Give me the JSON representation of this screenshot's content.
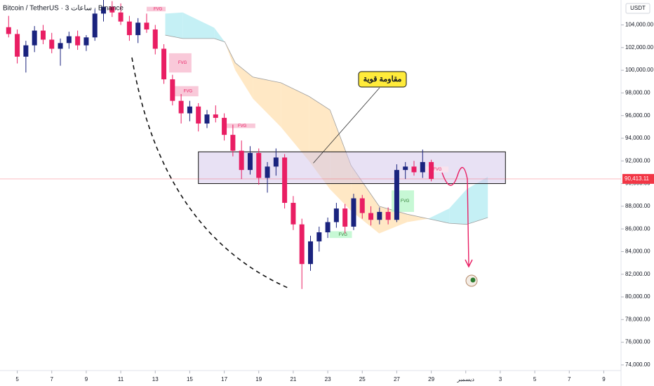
{
  "chart_data": {
    "type": "candlestick",
    "title": "Bitcoin / TetherUS · 3 ساعات · Binance",
    "currency": "USDT",
    "up_color": "#1a237e",
    "down_color": "#e91e63",
    "xlim": [
      4,
      40
    ],
    "ylim": [
      106200,
      73500
    ],
    "xticks": [
      5,
      7,
      9,
      11,
      13,
      15,
      17,
      19,
      21,
      23,
      25,
      27,
      29,
      {
        "value": 31,
        "label": "ديسمبر"
      },
      {
        "value": 33,
        "label": "3"
      },
      {
        "value": 35,
        "label": "5"
      },
      {
        "value": 37,
        "label": "7"
      },
      {
        "value": 39,
        "label": "9"
      }
    ],
    "yticks": [
      {
        "value": 74000,
        "label": "74,000.00"
      },
      {
        "value": 76000,
        "label": "76,000.00"
      },
      {
        "value": 78000,
        "label": "78,000.00"
      },
      {
        "value": 80000,
        "label": "80,000.00"
      },
      {
        "value": 82000,
        "label": "82,000.00"
      },
      {
        "value": 84000,
        "label": "84,000.00"
      },
      {
        "value": 86000,
        "label": "86,000.00"
      },
      {
        "value": 88000,
        "label": "88,000.00"
      },
      {
        "value": 90000,
        "label": "90,000.00"
      },
      {
        "value": 92000,
        "label": "92,000.00"
      },
      {
        "value": 94000,
        "label": "94,000.00"
      },
      {
        "value": 96000,
        "label": "96,000.00"
      },
      {
        "value": 98000,
        "label": "98,000.00"
      },
      {
        "value": 100000,
        "label": "100,000.00"
      },
      {
        "value": 102000,
        "label": "102,000.00"
      },
      {
        "value": 104000,
        "label": "104,000.00"
      }
    ],
    "last_price": {
      "value": 90413.11,
      "label": "90,413.11"
    },
    "candles": {
      "x": [
        4.5,
        5,
        5.5,
        6,
        6.5,
        7,
        7.5,
        8,
        8.5,
        9,
        9.5,
        10,
        10.5,
        11,
        11.5,
        12,
        12.5,
        13,
        13.5,
        14,
        14.5,
        15,
        15.5,
        16,
        16.5,
        17,
        17.5,
        18,
        18.5,
        19,
        19.5,
        20,
        20.5,
        21,
        21.5,
        22,
        22.5,
        23,
        23.5,
        24,
        24.5,
        25,
        25.5,
        26,
        26.5,
        27,
        27.5,
        28,
        28.5,
        29
      ],
      "open": [
        103800,
        103200,
        101200,
        102200,
        103500,
        102700,
        101900,
        102400,
        103000,
        102200,
        102900,
        105000,
        105600,
        105100,
        104300,
        103100,
        104200,
        103600,
        101900,
        99200,
        97300,
        96200,
        96800,
        95300,
        96100,
        95800,
        94300,
        92900,
        91200,
        92700,
        90500,
        91500,
        92300,
        88300,
        86400,
        82900,
        84900,
        85700,
        86600,
        87800,
        86200,
        88700,
        87400,
        86800,
        87500,
        86800,
        91200,
        91500,
        91000,
        91900
      ],
      "high": [
        104800,
        103600,
        102600,
        103900,
        104000,
        103300,
        102800,
        103400,
        103500,
        103100,
        105400,
        106200,
        106100,
        105900,
        104800,
        104600,
        105000,
        104000,
        102300,
        99600,
        97900,
        97300,
        97100,
        96500,
        96900,
        96200,
        95200,
        93800,
        93300,
        93100,
        91900,
        93100,
        92600,
        88900,
        86900,
        85400,
        86200,
        87000,
        88300,
        88200,
        89100,
        89000,
        88000,
        87900,
        87900,
        91700,
        91900,
        92000,
        93000,
        92100
      ],
      "low": [
        102900,
        100600,
        99800,
        101600,
        102300,
        101500,
        100400,
        101900,
        101800,
        101700,
        102600,
        104300,
        104700,
        104000,
        102600,
        102400,
        103300,
        101400,
        98800,
        96900,
        95300,
        95500,
        94600,
        94900,
        95400,
        93800,
        92400,
        90400,
        90800,
        89900,
        89200,
        90700,
        87800,
        85900,
        80700,
        82300,
        84000,
        85200,
        86100,
        85600,
        85900,
        86900,
        86300,
        86400,
        86400,
        86600,
        90400,
        90700,
        90500,
        90200
      ],
      "close": [
        103200,
        101200,
        102200,
        103500,
        102700,
        101900,
        102400,
        103000,
        102200,
        102900,
        105000,
        105600,
        105100,
        104300,
        103100,
        104200,
        103600,
        101900,
        99200,
        97300,
        96200,
        96800,
        95300,
        96100,
        95800,
        94300,
        92900,
        91200,
        92700,
        90500,
        91500,
        92300,
        88300,
        86400,
        82900,
        84900,
        85700,
        86600,
        87800,
        86200,
        88700,
        87400,
        86800,
        87500,
        86800,
        91200,
        91500,
        91000,
        91900,
        90413.11
      ]
    },
    "cloud": {
      "x": [
        13.58,
        14.59,
        16.42,
        17.03,
        17.64,
        18.66,
        20.28,
        21.91,
        23.13,
        24.35,
        25.98,
        27.6,
        28.82,
        30.04,
        31.05,
        32.28
      ],
      "span_a": [
        105000,
        105100,
        103750,
        102500,
        100000,
        97500,
        95000,
        92000,
        89500,
        87600,
        85600,
        86600,
        86900,
        87800,
        89500,
        90600
      ],
      "span_b": [
        103100,
        102800,
        102800,
        102500,
        100650,
        99400,
        98900,
        97700,
        96500,
        91600,
        88000,
        87300,
        86900,
        86500,
        86400,
        87000
      ]
    },
    "fvg": [
      {
        "label": "FVG",
        "x": [
          12.5,
          13.6
        ],
        "y": [
          105200,
          105600
        ],
        "color": "#f8bbd0"
      },
      {
        "label": "FVG",
        "x": [
          13.8,
          15.1
        ],
        "y": [
          99800,
          101500
        ],
        "color": "#f8bbd0"
      },
      {
        "label": "FVG",
        "x": [
          14,
          15.5
        ],
        "y": [
          97700,
          98600
        ],
        "color": "#f8bbd0"
      },
      {
        "label": "FVG",
        "x": [
          16.9,
          18.8
        ],
        "y": [
          94900,
          95300
        ],
        "color": "#f8bbd0"
      },
      {
        "label": "FVG",
        "x": [
          28.4,
          30
        ],
        "y": [
          91000,
          91500
        ],
        "color": "#fce4ec"
      },
      {
        "label": "FVG",
        "x": [
          23.1,
          24.4
        ],
        "y": [
          85200,
          85800
        ],
        "color": "#b9f6ca"
      },
      {
        "label": "FVG",
        "x": [
          26.7,
          28
        ],
        "y": [
          87500,
          89400
        ],
        "color": "#b9f6ca"
      }
    ],
    "resistance": {
      "label": "مقاومة قوية",
      "x": [
        15.5,
        33.3
      ],
      "y": [
        90000,
        92800
      ]
    }
  }
}
